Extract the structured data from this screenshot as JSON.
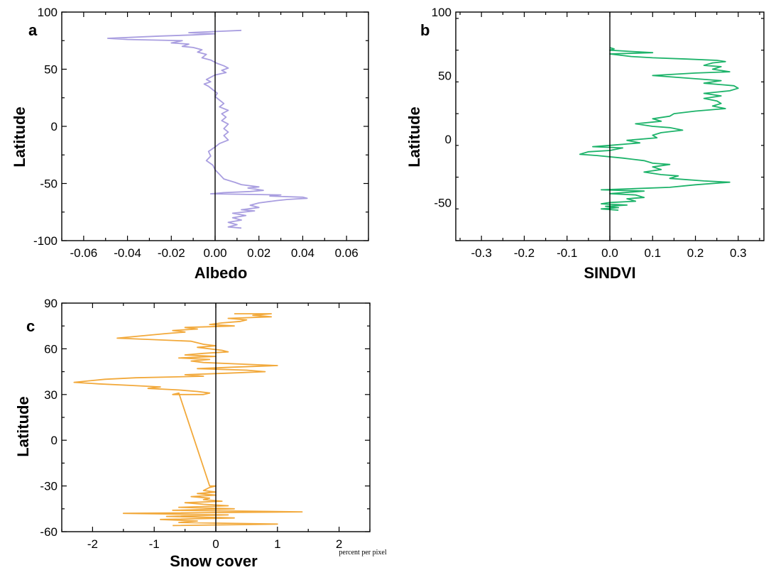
{
  "chart_data": [
    {
      "type": "line",
      "panel_label": "a",
      "xlabel": "Albedo",
      "ylabel": "Latitude",
      "xlim": [
        -0.07,
        0.07
      ],
      "ylim": [
        -100,
        100
      ],
      "xticks": [
        -0.06,
        -0.04,
        -0.02,
        0.0,
        0.02,
        0.04,
        0.06
      ],
      "xtick_labels": [
        "-0.06",
        "-0.04",
        "-0.02",
        "0.00",
        "0.02",
        "0.04",
        "0.06"
      ],
      "yticks": [
        -100,
        -50,
        0,
        50,
        100
      ],
      "ytick_labels": [
        "-100",
        "-50",
        "0",
        "50",
        "100"
      ],
      "zero_line": 0,
      "series": [
        {
          "color": "#a99ee0",
          "points": [
            [
              0.012,
              84
            ],
            [
              0.0,
              83
            ],
            [
              -0.012,
              82
            ],
            [
              0.0,
              81
            ],
            [
              -0.01,
              80
            ],
            [
              -0.025,
              79
            ],
            [
              -0.049,
              77
            ],
            [
              -0.04,
              76
            ],
            [
              -0.015,
              75
            ],
            [
              -0.02,
              73
            ],
            [
              -0.012,
              72
            ],
            [
              -0.015,
              70
            ],
            [
              -0.01,
              69
            ],
            [
              -0.006,
              67
            ],
            [
              -0.008,
              65
            ],
            [
              -0.004,
              63
            ],
            [
              -0.006,
              60
            ],
            [
              -0.002,
              58
            ],
            [
              0.001,
              55
            ],
            [
              0.004,
              53
            ],
            [
              0.006,
              51
            ],
            [
              0.003,
              49
            ],
            [
              0.005,
              47
            ],
            [
              0.0,
              45
            ],
            [
              -0.002,
              43
            ],
            [
              -0.004,
              41
            ],
            [
              -0.002,
              39
            ],
            [
              -0.005,
              37
            ],
            [
              -0.003,
              35
            ],
            [
              -0.001,
              32
            ],
            [
              0.001,
              29
            ],
            [
              0.0,
              26
            ],
            [
              0.002,
              23
            ],
            [
              0.004,
              20
            ],
            [
              0.002,
              17
            ],
            [
              0.006,
              14
            ],
            [
              0.003,
              11
            ],
            [
              0.005,
              8
            ],
            [
              0.003,
              5
            ],
            [
              0.006,
              2
            ],
            [
              0.004,
              -2
            ],
            [
              0.006,
              -5
            ],
            [
              0.004,
              -8
            ],
            [
              0.006,
              -12
            ],
            [
              0.002,
              -15
            ],
            [
              0.0,
              -18
            ],
            [
              -0.003,
              -22
            ],
            [
              -0.002,
              -26
            ],
            [
              -0.004,
              -30
            ],
            [
              -0.001,
              -34
            ],
            [
              0.0,
              -38
            ],
            [
              0.002,
              -42
            ],
            [
              0.004,
              -46
            ],
            [
              0.009,
              -49
            ],
            [
              0.012,
              -51
            ],
            [
              0.02,
              -53
            ],
            [
              0.015,
              -54
            ],
            [
              0.022,
              -56
            ],
            [
              0.016,
              -57
            ],
            [
              0.004,
              -58
            ],
            [
              -0.002,
              -59
            ],
            [
              0.03,
              -60
            ],
            [
              0.025,
              -61
            ],
            [
              0.04,
              -62
            ],
            [
              0.042,
              -63
            ],
            [
              0.033,
              -64
            ],
            [
              0.028,
              -65
            ],
            [
              0.02,
              -67
            ],
            [
              0.016,
              -69
            ],
            [
              0.02,
              -71
            ],
            [
              0.012,
              -73
            ],
            [
              0.018,
              -74
            ],
            [
              0.008,
              -76
            ],
            [
              0.014,
              -78
            ],
            [
              0.008,
              -80
            ],
            [
              0.012,
              -82
            ],
            [
              0.006,
              -84
            ],
            [
              0.01,
              -86
            ],
            [
              0.006,
              -88
            ],
            [
              0.012,
              -89
            ]
          ]
        }
      ]
    },
    {
      "type": "line",
      "panel_label": "b",
      "xlabel": "SINDVI",
      "ylabel": "Latitude",
      "xlim": [
        -0.36,
        0.36
      ],
      "ylim": [
        -80,
        100
      ],
      "xticks": [
        -0.3,
        -0.2,
        -0.1,
        0.0,
        0.1,
        0.2,
        0.3
      ],
      "xtick_labels": [
        "-0.3",
        "-0.2",
        "-0.1",
        "0.0",
        "0.1",
        "0.2",
        "0.3"
      ],
      "yticks": [
        -50,
        0,
        50,
        100
      ],
      "ytick_labels": [
        "-50",
        "0",
        "50",
        "100"
      ],
      "zero_line": 0,
      "series": [
        {
          "color": "#1db36a",
          "points": [
            [
              0.0,
              72
            ],
            [
              0.01,
              71
            ],
            [
              0.0,
              70
            ],
            [
              0.05,
              69
            ],
            [
              0.1,
              68
            ],
            [
              0.0,
              67
            ],
            [
              0.05,
              65
            ],
            [
              0.1,
              64
            ],
            [
              0.18,
              63
            ],
            [
              0.25,
              62
            ],
            [
              0.27,
              61
            ],
            [
              0.24,
              60
            ],
            [
              0.22,
              58
            ],
            [
              0.26,
              57
            ],
            [
              0.24,
              55
            ],
            [
              0.28,
              53
            ],
            [
              0.2,
              52
            ],
            [
              0.1,
              50
            ],
            [
              0.18,
              48
            ],
            [
              0.26,
              46
            ],
            [
              0.22,
              44
            ],
            [
              0.29,
              42
            ],
            [
              0.3,
              40
            ],
            [
              0.28,
              38
            ],
            [
              0.22,
              36
            ],
            [
              0.26,
              34
            ],
            [
              0.22,
              32
            ],
            [
              0.25,
              30
            ],
            [
              0.26,
              28
            ],
            [
              0.24,
              26
            ],
            [
              0.27,
              24
            ],
            [
              0.2,
              22
            ],
            [
              0.15,
              20
            ],
            [
              0.14,
              18
            ],
            [
              0.1,
              16
            ],
            [
              0.12,
              14
            ],
            [
              0.06,
              12
            ],
            [
              0.1,
              10
            ],
            [
              0.14,
              9
            ],
            [
              0.17,
              7
            ],
            [
              0.12,
              5
            ],
            [
              0.1,
              3
            ],
            [
              0.11,
              1
            ],
            [
              0.04,
              -1
            ],
            [
              0.07,
              -3
            ],
            [
              0.0,
              -5
            ],
            [
              -0.04,
              -6
            ],
            [
              0.03,
              -7
            ],
            [
              0.0,
              -9
            ],
            [
              -0.05,
              -10
            ],
            [
              -0.07,
              -12
            ],
            [
              -0.03,
              -13
            ],
            [
              0.03,
              -15
            ],
            [
              0.08,
              -17
            ],
            [
              0.1,
              -19
            ],
            [
              0.14,
              -20
            ],
            [
              0.1,
              -22
            ],
            [
              0.12,
              -24
            ],
            [
              0.08,
              -26
            ],
            [
              0.12,
              -28
            ],
            [
              0.16,
              -29
            ],
            [
              0.14,
              -31
            ],
            [
              0.22,
              -33
            ],
            [
              0.28,
              -34
            ],
            [
              0.2,
              -36
            ],
            [
              0.14,
              -38
            ],
            [
              0.06,
              -39
            ],
            [
              -0.02,
              -40
            ],
            [
              0.08,
              -41
            ],
            [
              0.0,
              -43
            ],
            [
              0.06,
              -44
            ],
            [
              0.08,
              -46
            ],
            [
              0.04,
              -47
            ],
            [
              0.06,
              -49
            ],
            [
              0.0,
              -50
            ],
            [
              -0.02,
              -51
            ],
            [
              0.04,
              -52
            ],
            [
              -0.01,
              -53
            ],
            [
              0.02,
              -54
            ],
            [
              -0.02,
              -55
            ],
            [
              0.02,
              -56
            ]
          ]
        }
      ]
    },
    {
      "type": "line",
      "panel_label": "c",
      "xlabel": "Snow cover",
      "x_unit_note": "percent per pixel",
      "ylabel": "Latitude",
      "xlim": [
        -2.5,
        2.5
      ],
      "ylim": [
        -60,
        90
      ],
      "xticks": [
        -2,
        -1,
        0,
        1,
        2
      ],
      "xtick_labels": [
        "-2",
        "-1",
        "0",
        "1",
        "2"
      ],
      "yticks": [
        -60,
        -30,
        0,
        30,
        60,
        90
      ],
      "ytick_labels": [
        "-60",
        "-30",
        "0",
        "30",
        "60",
        "90"
      ],
      "zero_line": 0,
      "series": [
        {
          "color": "#f2a93b",
          "points": [
            [
              0.3,
              83
            ],
            [
              0.9,
              83
            ],
            [
              0.6,
              82
            ],
            [
              0.9,
              81
            ],
            [
              0.2,
              80
            ],
            [
              0.5,
              79
            ],
            [
              0.4,
              78
            ],
            [
              0.1,
              77
            ],
            [
              -0.1,
              76
            ],
            [
              0.3,
              75
            ],
            [
              -0.5,
              74
            ],
            [
              -0.3,
              73
            ],
            [
              -0.7,
              72
            ],
            [
              -0.5,
              71
            ],
            [
              -0.8,
              70
            ],
            [
              -1.6,
              67
            ],
            [
              -1.0,
              66
            ],
            [
              -0.4,
              65
            ],
            [
              -0.2,
              63
            ],
            [
              0.0,
              62
            ],
            [
              -0.3,
              61
            ],
            [
              0.1,
              59
            ],
            [
              0.2,
              58
            ],
            [
              -0.2,
              57
            ],
            [
              -0.5,
              56
            ],
            [
              0.0,
              55
            ],
            [
              -0.6,
              54
            ],
            [
              -0.1,
              53
            ],
            [
              -0.4,
              52
            ],
            [
              -0.2,
              51
            ],
            [
              0.4,
              50
            ],
            [
              1.0,
              49
            ],
            [
              0.3,
              48
            ],
            [
              -0.3,
              47
            ],
            [
              0.5,
              46
            ],
            [
              0.8,
              45
            ],
            [
              0.2,
              44
            ],
            [
              -0.5,
              43
            ],
            [
              -0.2,
              42
            ],
            [
              -1.3,
              41
            ],
            [
              -1.8,
              40
            ],
            [
              -2.3,
              38
            ],
            [
              -1.9,
              37
            ],
            [
              -1.4,
              36
            ],
            [
              -0.9,
              35
            ],
            [
              -1.1,
              34
            ],
            [
              -0.6,
              33
            ],
            [
              -0.3,
              32
            ],
            [
              -0.1,
              31
            ],
            [
              -0.2,
              30
            ],
            [
              -0.7,
              30
            ],
            [
              -0.6,
              31
            ],
            [
              -0.1,
              -30
            ],
            [
              0.0,
              -30
            ],
            [
              -0.1,
              -31
            ],
            [
              -0.2,
              -33
            ],
            [
              0.0,
              -34
            ],
            [
              -0.3,
              -35
            ],
            [
              0.0,
              -36
            ],
            [
              -0.4,
              -37
            ],
            [
              -0.1,
              -38
            ],
            [
              -0.2,
              -39
            ],
            [
              0.1,
              -40
            ],
            [
              -0.5,
              -41
            ],
            [
              -0.2,
              -42
            ],
            [
              0.2,
              -43
            ],
            [
              -0.6,
              -44
            ],
            [
              0.3,
              -45
            ],
            [
              -0.7,
              -46
            ],
            [
              1.4,
              -47
            ],
            [
              -1.5,
              -48
            ],
            [
              0.2,
              -49
            ],
            [
              -0.8,
              -50
            ],
            [
              0.3,
              -51
            ],
            [
              -0.9,
              -52
            ],
            [
              -0.3,
              -53
            ],
            [
              -0.6,
              -54
            ],
            [
              1.0,
              -55
            ],
            [
              -0.7,
              -56
            ]
          ]
        }
      ]
    }
  ]
}
